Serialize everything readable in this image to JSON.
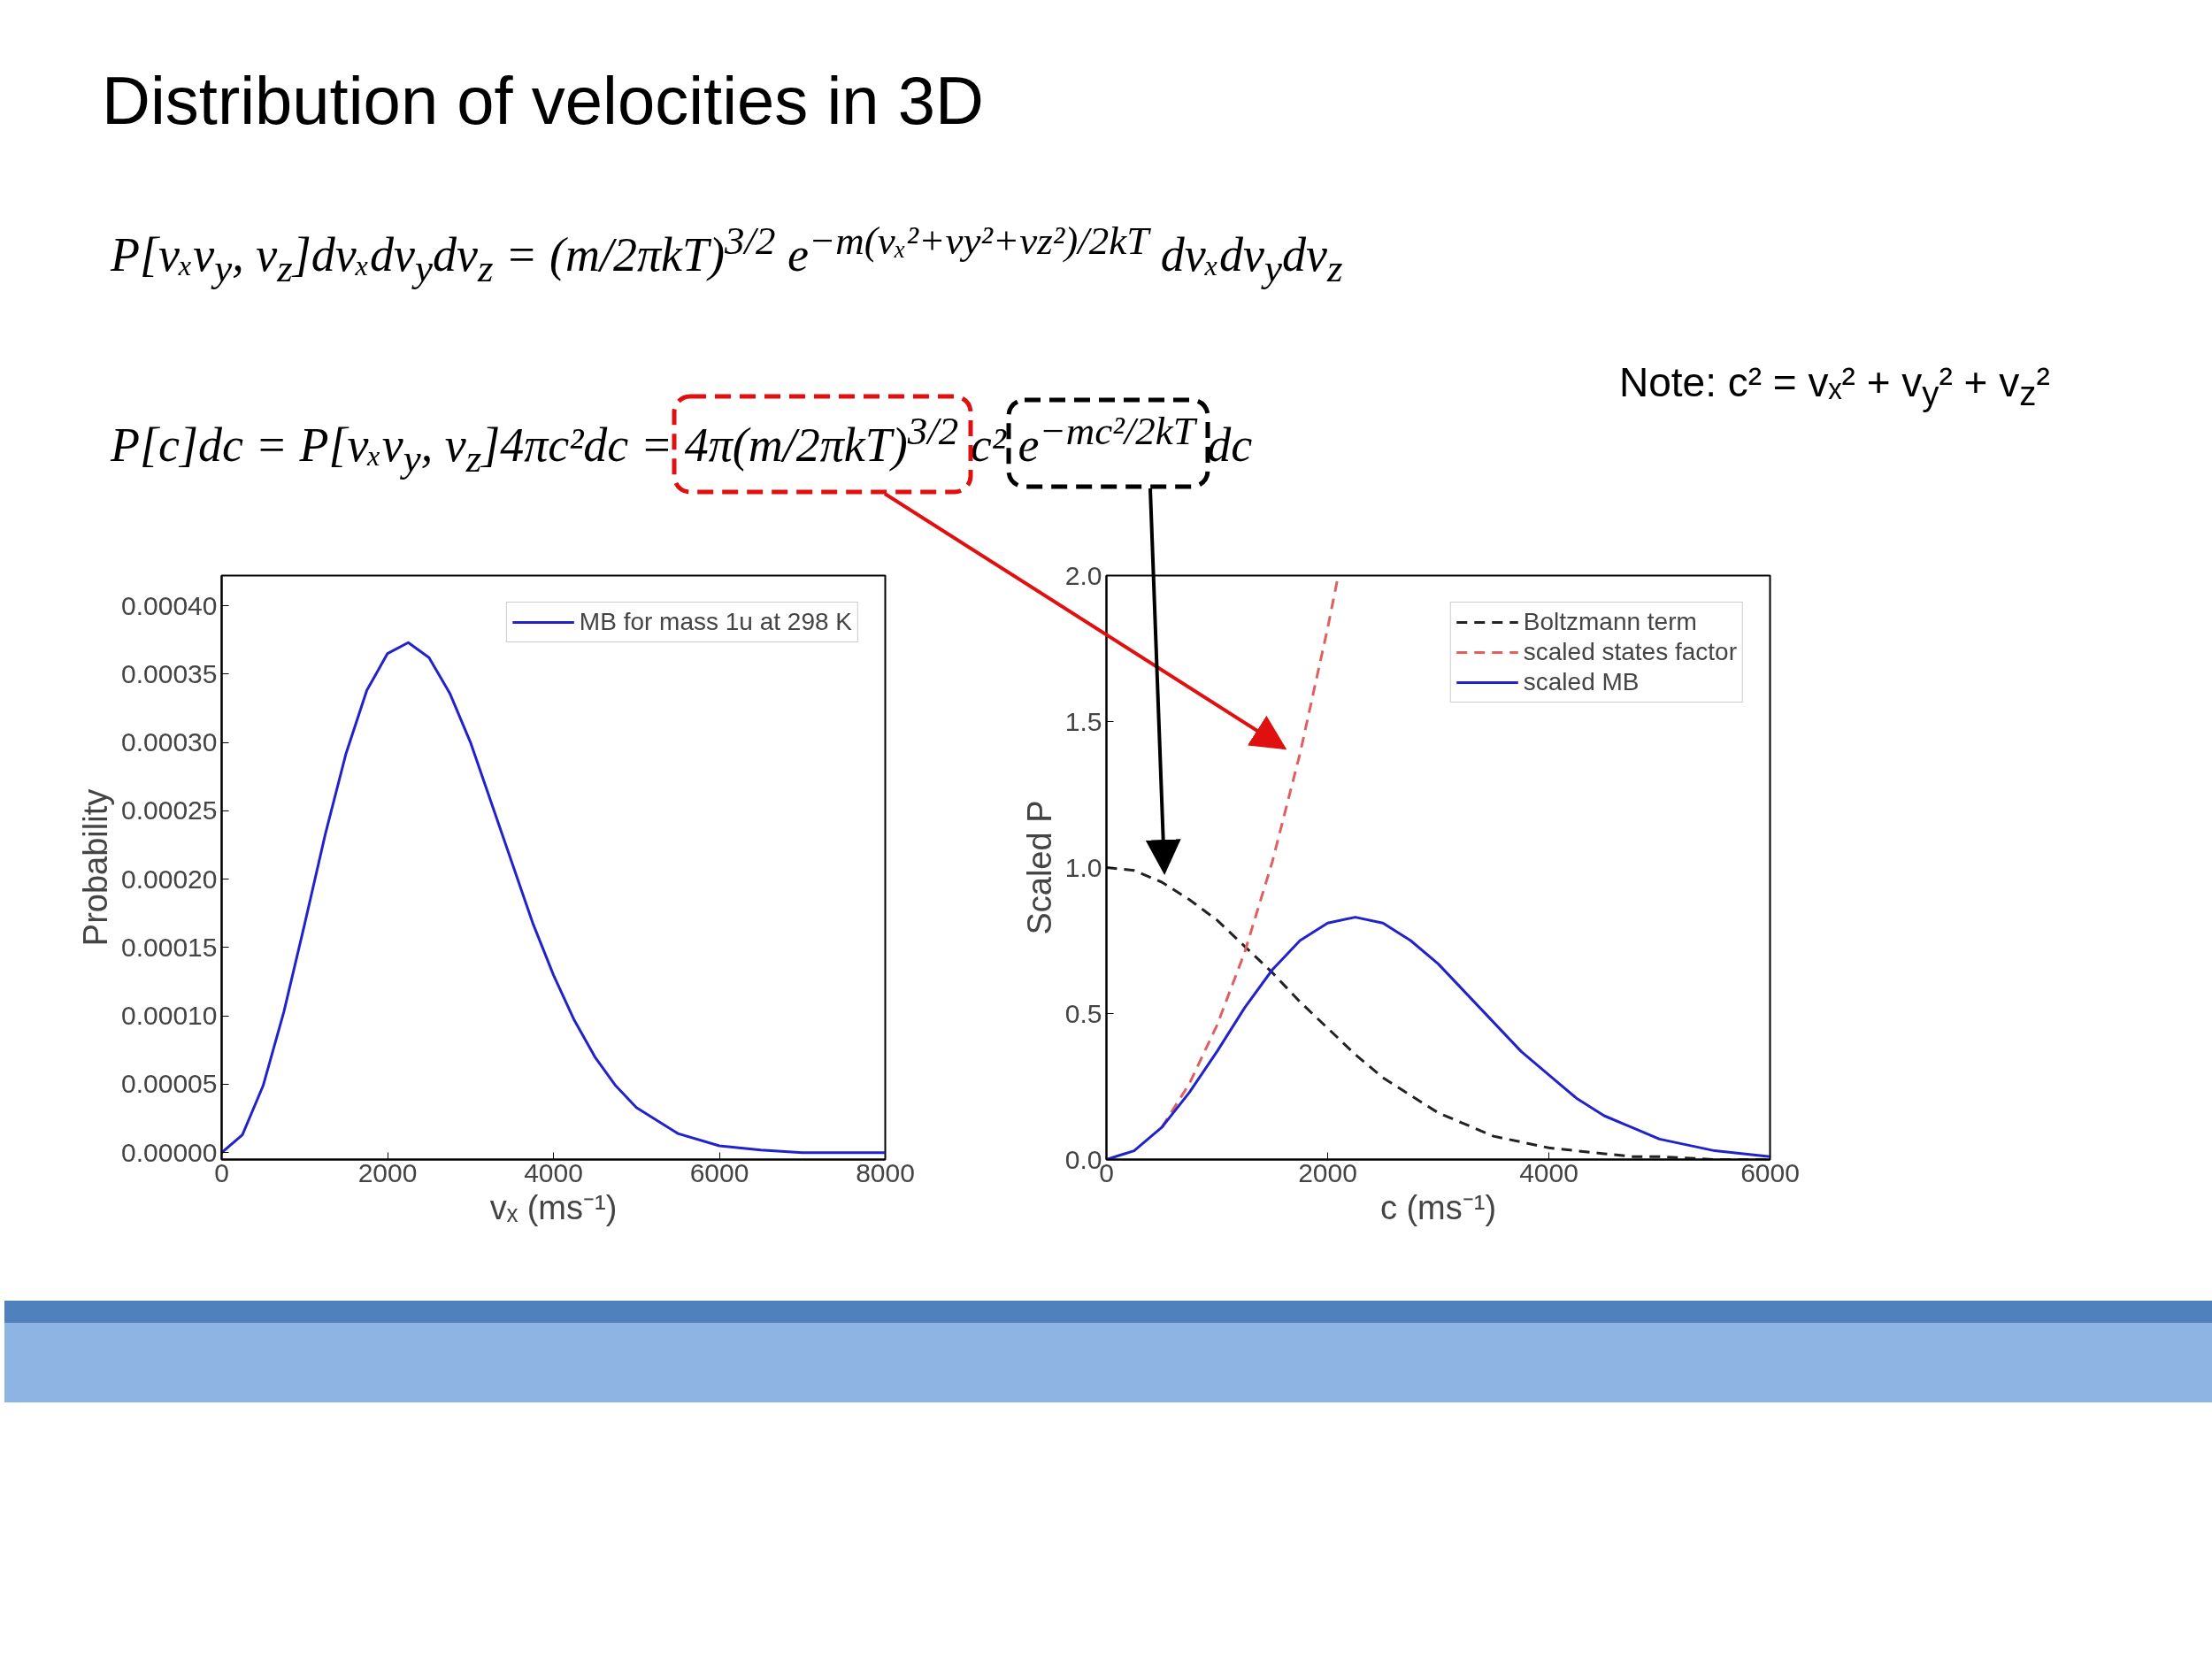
{
  "chart_data": [
    {
      "type": "line",
      "title": "Distribution of velocities in 3D",
      "annotations": [
        "P[vₓv$_{y}$, v$_{z}$]dvₓdv$_{y}$dv$_{z}$ = (m/2πkT)$^{3/2}$ e$^{−m(vₓ²+vy²+vz²)/2kT}$ dvₓdv$_{y}$dv$_{z}$",
        "Note: c² = vₓ² + v$_{y}$² + v$_{z}$²",
        "P[c]dc = P[vₓv$_{y}$, v$_{z}$]4πc²dc = 4π(m/2πkT)$^{3/2}$ c² e$^{−mc²/2kT}$ dc"
      ],
      "xlabel": "vₓ (ms⁻¹)",
      "ylabel": "Probability",
      "xlim": [
        0,
        8000
      ],
      "xticks": [
        0,
        2000,
        4000,
        6000,
        8000
      ],
      "ylim": [
        -5e-06,
        0.000422
      ],
      "yticks": [
        {
          "value": 0,
          "label": "0.00000"
        },
        {
          "value": 5e-05,
          "label": "0.00005"
        },
        {
          "value": 0.0001,
          "label": "0.00010"
        },
        {
          "value": 0.00015,
          "label": "0.00015"
        },
        {
          "value": 0.0002,
          "label": "0.00020"
        },
        {
          "value": 0.00025,
          "label": "0.00025"
        },
        {
          "value": 0.0003,
          "label": "0.00030"
        },
        {
          "value": 0.00035,
          "label": "0.00035"
        },
        {
          "value": 0.0004,
          "label": "0.00040"
        }
      ],
      "legend": "top right",
      "grid": false,
      "series": [
        {
          "name": "MB for mass 1u at 298 K",
          "color": "#2222cc",
          "line_style": "solid",
          "x": [
            0,
            250,
            500,
            750,
            1000,
            1250,
            1500,
            1750,
            2000,
            2250,
            2500,
            2750,
            3000,
            3250,
            3500,
            3750,
            4000,
            4250,
            4500,
            4750,
            5000,
            5500,
            6000,
            6500,
            7000,
            8000
          ],
          "values": [
            0,
            1.3e-05,
            4.9e-05,
            0.000103,
            0.000167,
            0.000233,
            0.000292,
            0.000338,
            0.000365,
            0.000373,
            0.000362,
            0.000336,
            0.0003,
            0.000256,
            0.000212,
            0.000168,
            0.00013,
            9.7e-05,
            7e-05,
            4.9e-05,
            3.3e-05,
            1.4e-05,
            5e-06,
            2e-06,
            0,
            0
          ]
        }
      ]
    },
    {
      "type": "line",
      "xlabel": "c (ms⁻¹)",
      "ylabel": "Scaled P",
      "xlim": [
        0,
        6000
      ],
      "xticks": [
        0,
        2000,
        4000,
        6000
      ],
      "ylim": [
        0,
        2.0
      ],
      "yticks": [
        {
          "value": 0,
          "label": "0.0"
        },
        {
          "value": 0.5,
          "label": "0.5"
        },
        {
          "value": 1,
          "label": "1.0"
        },
        {
          "value": 1.5,
          "label": "1.5"
        },
        {
          "value": 2,
          "label": "2.0"
        }
      ],
      "legend": "top right",
      "grid": false,
      "series": [
        {
          "name": "Boltzmann term",
          "color": "#222222",
          "line_style": "dashed",
          "x": [
            0,
            250,
            500,
            750,
            1000,
            1250,
            1500,
            1750,
            2000,
            2250,
            2500,
            2750,
            3000,
            3250,
            3500,
            3750,
            4000,
            4250,
            4500,
            4750,
            5000,
            5500,
            6000
          ],
          "values": [
            1,
            0.99,
            0.95,
            0.89,
            0.82,
            0.73,
            0.64,
            0.54,
            0.45,
            0.36,
            0.28,
            0.22,
            0.16,
            0.12,
            0.08,
            0.06,
            0.04,
            0.03,
            0.02,
            0.01,
            0.01,
            0,
            0
          ]
        },
        {
          "name": "scaled states factor",
          "color": "#e06060",
          "line_style": "dashed",
          "x": [
            500,
            750,
            1000,
            1250,
            1500,
            1750,
            2000,
            2096
          ],
          "values": [
            0.11,
            0.26,
            0.46,
            0.71,
            1.02,
            1.39,
            1.82,
            2.0
          ]
        },
        {
          "name": "scaled MB",
          "color": "#2222cc",
          "line_style": "solid",
          "x": [
            0,
            250,
            500,
            750,
            1000,
            1250,
            1500,
            1750,
            2000,
            2250,
            2500,
            2750,
            3000,
            3250,
            3500,
            3750,
            4000,
            4250,
            4500,
            4750,
            5000,
            5500,
            6000
          ],
          "values": [
            0,
            0.03,
            0.11,
            0.23,
            0.37,
            0.52,
            0.65,
            0.75,
            0.81,
            0.83,
            0.81,
            0.75,
            0.67,
            0.57,
            0.47,
            0.37,
            0.29,
            0.21,
            0.15,
            0.11,
            0.07,
            0.03,
            0.01
          ]
        }
      ]
    }
  ]
}
